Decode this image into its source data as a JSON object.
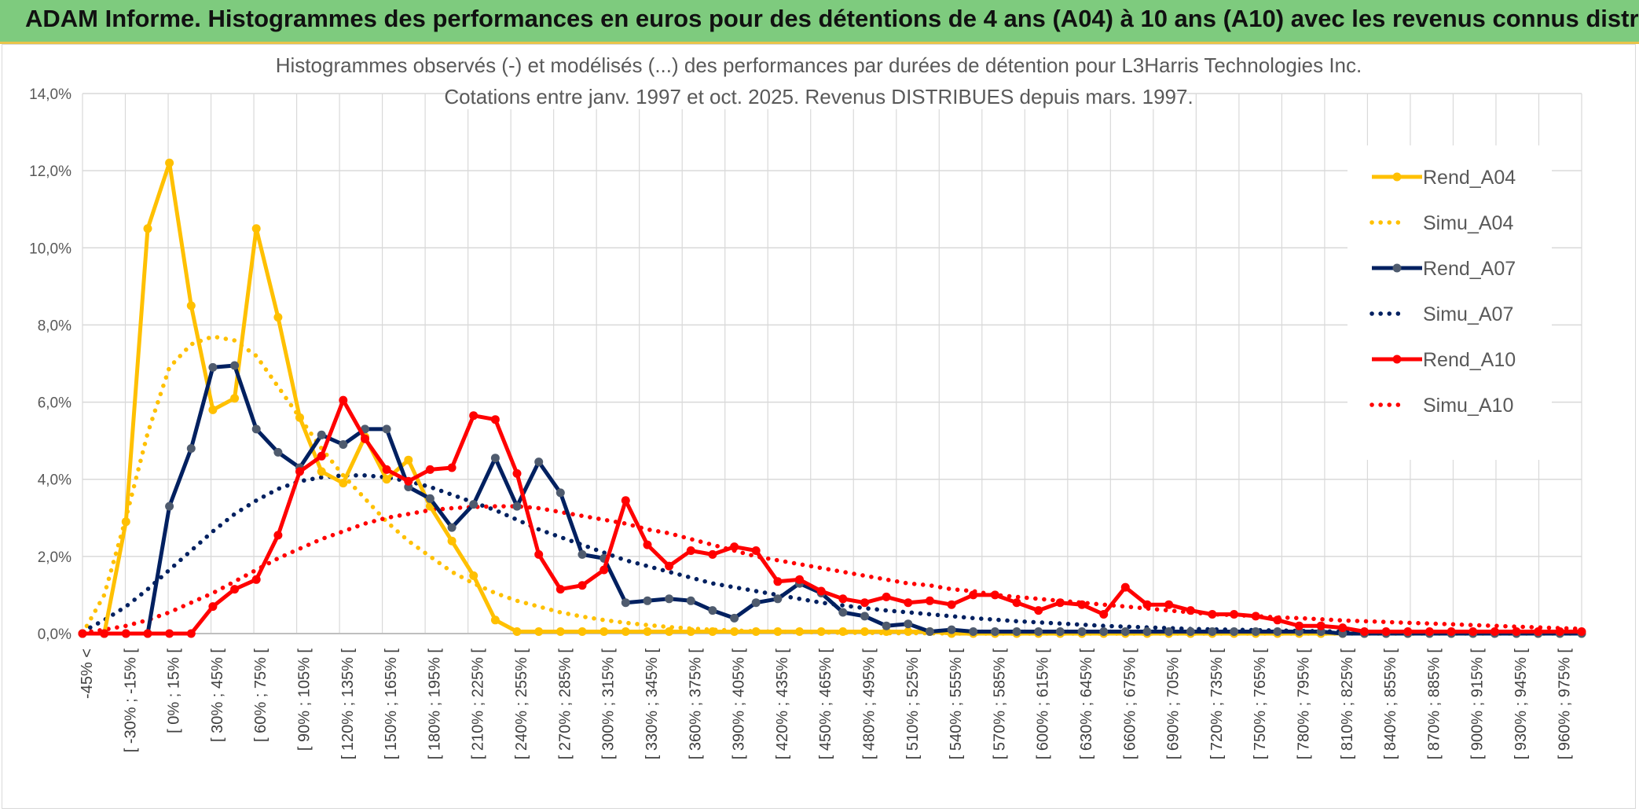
{
  "banner": {
    "title": "ADAM Informe. Histogrammes des performances en euros pour des détentions de 4 ans (A04) à 10 ans (A10) avec les revenus connus distribués"
  },
  "colors": {
    "A04": "#ffc000",
    "A07": "#002060",
    "A10": "#ff0000",
    "marker_A07": "#4f5b6e",
    "banner": "#7ecb7e",
    "grid": "#d9d9d9"
  },
  "chart_data": {
    "type": "line",
    "title": "Histogrammes observés (-) et modélisés (...) des performances par durées de détention pour L3Harris Technologies Inc.",
    "subtitle": "Cotations entre janv. 1997 et oct. 2025. Revenus DISTRIBUES depuis mars. 1997.",
    "ylim": [
      0,
      14
    ],
    "yticks": [
      "0,0%",
      "2,0%",
      "4,0%",
      "6,0%",
      "8,0%",
      "10,0%",
      "12,0%",
      "14,0%"
    ],
    "grid": true,
    "legend_position": "right",
    "x_labels": [
      "-45% <",
      "[ -30% ; -15% [",
      "[ 0% ; 15% [",
      "[ 30% ; 45% [",
      "[ 60% ; 75% [",
      "[ 90% ; 105% [",
      "[ 120% ; 135% [",
      "[ 150% ; 165% [",
      "[ 180% ; 195% [",
      "[ 210% ; 225% [",
      "[ 240% ; 255% [",
      "[ 270% ; 285% [",
      "[ 300% ; 315% [",
      "[ 330% ; 345% [",
      "[ 360% ; 375% [",
      "[ 390% ; 405% [",
      "[ 420% ; 435% [",
      "[ 450% ; 465% [",
      "[ 480% ; 495% [",
      "[ 510% ; 525% [",
      "[ 540% ; 555% [",
      "[ 570% ; 585% [",
      "[ 600% ; 615% [",
      "[ 630% ; 645% [",
      "[ 660% ; 675% [",
      "[ 690% ; 705% [",
      "[ 720% ; 735% [",
      "[ 750% ; 765% [",
      "[ 780% ; 795% [",
      "[ 810% ; 825% [",
      "[ 840% ; 855% [",
      "[ 870% ; 885% [",
      "[ 900% ; 915% [",
      "[ 930% ; 945% [",
      "[ 960% ; 975% ["
    ],
    "series": [
      {
        "name": "Rend_A04",
        "key": "A04",
        "style": "solid",
        "values": [
          0,
          0,
          2.9,
          10.5,
          12.2,
          8.5,
          5.8,
          6.1,
          10.5,
          8.2,
          5.6,
          4.2,
          3.9,
          5.1,
          4.0,
          4.5,
          3.3,
          2.4,
          1.5,
          0.35,
          0.05,
          0.05,
          0.05,
          0.05,
          0.05,
          0.05,
          0.05,
          0.05,
          0.05,
          0.05,
          0.05,
          0.05,
          0.05,
          0.05,
          0.05,
          0.05,
          0.05,
          0.05,
          0.05,
          0.05,
          0,
          0,
          0,
          0,
          0,
          0,
          0,
          0,
          0,
          0,
          0,
          0,
          0,
          0,
          0,
          0,
          0,
          0,
          0,
          0,
          0,
          0,
          0,
          0,
          0,
          0,
          0,
          0,
          0,
          0
        ]
      },
      {
        "name": "Simu_A04",
        "key": "A04",
        "style": "dotted",
        "values": [
          0,
          1.0,
          3.0,
          5.2,
          6.9,
          7.5,
          7.7,
          7.6,
          7.2,
          6.4,
          5.6,
          4.8,
          4.1,
          3.5,
          2.9,
          2.4,
          2.0,
          1.6,
          1.3,
          1.05,
          0.85,
          0.7,
          0.55,
          0.44,
          0.35,
          0.28,
          0.22,
          0.17,
          0.13,
          0.1,
          0.08,
          0.06,
          0.05,
          0.04,
          0.03,
          0.02,
          0.02,
          0.01,
          0.01,
          0.01,
          0,
          0,
          0,
          0,
          0,
          0,
          0,
          0,
          0,
          0,
          0,
          0,
          0,
          0,
          0,
          0,
          0,
          0,
          0,
          0,
          0,
          0,
          0,
          0,
          0,
          0,
          0,
          0,
          0,
          0
        ]
      },
      {
        "name": "Rend_A07",
        "key": "A07",
        "style": "solid",
        "values": [
          0,
          0,
          0,
          0,
          3.3,
          4.8,
          6.9,
          6.95,
          5.3,
          4.7,
          4.3,
          5.15,
          4.9,
          5.3,
          5.3,
          3.8,
          3.5,
          2.75,
          3.35,
          4.55,
          3.3,
          4.45,
          3.65,
          2.05,
          1.95,
          0.8,
          0.85,
          0.9,
          0.85,
          0.6,
          0.4,
          0.8,
          0.9,
          1.3,
          1.05,
          0.55,
          0.45,
          0.2,
          0.25,
          0.05,
          0.1,
          0.05,
          0.05,
          0.05,
          0.05,
          0.05,
          0.05,
          0.05,
          0.05,
          0.05,
          0.05,
          0.05,
          0.05,
          0.05,
          0.05,
          0.05,
          0.05,
          0.05,
          0,
          0,
          0,
          0,
          0,
          0,
          0,
          0,
          0,
          0,
          0,
          0
        ]
      },
      {
        "name": "Simu_A07",
        "key": "A07",
        "style": "dotted",
        "values": [
          0.05,
          0.35,
          0.7,
          1.15,
          1.65,
          2.15,
          2.65,
          3.1,
          3.45,
          3.75,
          3.95,
          4.05,
          4.1,
          4.1,
          4.05,
          3.95,
          3.8,
          3.6,
          3.4,
          3.2,
          2.95,
          2.7,
          2.5,
          2.3,
          2.1,
          1.9,
          1.75,
          1.6,
          1.45,
          1.3,
          1.2,
          1.1,
          1.0,
          0.9,
          0.8,
          0.73,
          0.66,
          0.6,
          0.55,
          0.5,
          0.45,
          0.4,
          0.36,
          0.32,
          0.29,
          0.26,
          0.23,
          0.2,
          0.18,
          0.16,
          0.14,
          0.12,
          0.11,
          0.1,
          0.09,
          0.08,
          0.07,
          0.06,
          0.05,
          0.05,
          0.04,
          0.04,
          0.03,
          0.03,
          0.03,
          0.02,
          0.02,
          0.02,
          0.02,
          0.01
        ]
      },
      {
        "name": "Rend_A10",
        "key": "A10",
        "style": "solid",
        "values": [
          0,
          0,
          0,
          0,
          0,
          0,
          0.7,
          1.15,
          1.4,
          2.55,
          4.2,
          4.6,
          6.05,
          5.05,
          4.25,
          3.95,
          4.25,
          4.3,
          5.65,
          5.55,
          4.15,
          2.05,
          1.15,
          1.25,
          1.65,
          3.45,
          2.3,
          1.75,
          2.15,
          2.05,
          2.25,
          2.15,
          1.35,
          1.4,
          1.1,
          0.9,
          0.8,
          0.95,
          0.8,
          0.85,
          0.75,
          1.0,
          1.0,
          0.8,
          0.6,
          0.8,
          0.75,
          0.5,
          1.2,
          0.75,
          0.75,
          0.6,
          0.5,
          0.5,
          0.45,
          0.35,
          0.2,
          0.2,
          0.15,
          0.05,
          0.05,
          0.05,
          0.05,
          0.05,
          0.05,
          0.05,
          0.05,
          0.05,
          0.05,
          0.05
        ]
      },
      {
        "name": "Simu_A10",
        "key": "A10",
        "style": "dotted",
        "values": [
          0.02,
          0.1,
          0.2,
          0.35,
          0.55,
          0.8,
          1.05,
          1.35,
          1.65,
          1.95,
          2.2,
          2.45,
          2.65,
          2.85,
          3.0,
          3.1,
          3.2,
          3.25,
          3.28,
          3.3,
          3.3,
          3.25,
          3.15,
          3.05,
          2.95,
          2.85,
          2.7,
          2.6,
          2.45,
          2.3,
          2.15,
          2.0,
          1.9,
          1.8,
          1.7,
          1.6,
          1.5,
          1.4,
          1.3,
          1.25,
          1.15,
          1.1,
          1.0,
          0.95,
          0.9,
          0.85,
          0.8,
          0.75,
          0.7,
          0.65,
          0.6,
          0.55,
          0.5,
          0.48,
          0.45,
          0.42,
          0.4,
          0.37,
          0.34,
          0.32,
          0.3,
          0.28,
          0.26,
          0.24,
          0.22,
          0.2,
          0.18,
          0.16,
          0.14,
          0.12
        ]
      }
    ]
  }
}
